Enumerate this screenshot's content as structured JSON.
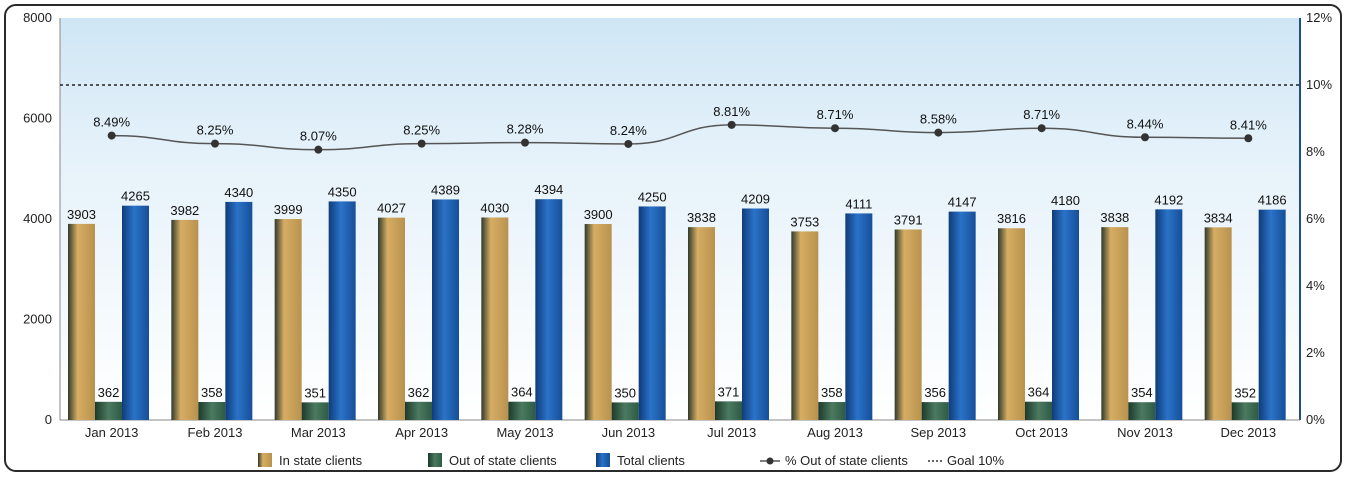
{
  "chart_data": {
    "type": "bar",
    "categories": [
      "Jan 2013",
      "Feb 2013",
      "Mar 2013",
      "Apr 2013",
      "May 2013",
      "Jun 2013",
      "Jul 2013",
      "Aug 2013",
      "Sep 2013",
      "Oct 2013",
      "Nov 2013",
      "Dec 2013"
    ],
    "series": [
      {
        "name": "In state clients",
        "values": [
          3903,
          3982,
          3999,
          4027,
          4030,
          3900,
          3838,
          3753,
          3791,
          3816,
          3838,
          3834
        ],
        "color": "#c9a15a"
      },
      {
        "name": "Out of state clients",
        "values": [
          362,
          358,
          351,
          362,
          364,
          350,
          371,
          358,
          356,
          364,
          354,
          352
        ],
        "color": "#3d6b52"
      },
      {
        "name": "Total clients",
        "values": [
          4265,
          4340,
          4350,
          4389,
          4394,
          4250,
          4209,
          4111,
          4147,
          4180,
          4192,
          4186
        ],
        "color": "#1f5fb0"
      }
    ],
    "line_series": {
      "name": "% Out of state clients",
      "values": [
        8.49,
        8.25,
        8.07,
        8.25,
        8.28,
        8.24,
        8.81,
        8.71,
        8.58,
        8.71,
        8.44,
        8.41
      ],
      "labels": [
        "8.49%",
        "8.25%",
        "8.07%",
        "8.25%",
        "8.28%",
        "8.24%",
        "8.81%",
        "8.71%",
        "8.58%",
        "8.71%",
        "8.44%",
        "8.41%"
      ],
      "axis": "right"
    },
    "goal": {
      "name": "Goal 10%",
      "value": 10,
      "axis": "right"
    },
    "y_left": {
      "min": 0,
      "max": 8000,
      "ticks": [
        "0",
        "2000",
        "4000",
        "6000",
        "8000"
      ]
    },
    "y_right": {
      "min": 0,
      "max": 12,
      "ticks": [
        "0%",
        "2%",
        "4%",
        "6%",
        "8%",
        "10%",
        "12%"
      ]
    },
    "legend_position": "bottom",
    "grid": false
  },
  "legend": {
    "in_state": "In state clients",
    "out_state": "Out of state clients",
    "total": "Total clients",
    "pct": "% Out of state clients",
    "goal": "Goal 10%"
  }
}
